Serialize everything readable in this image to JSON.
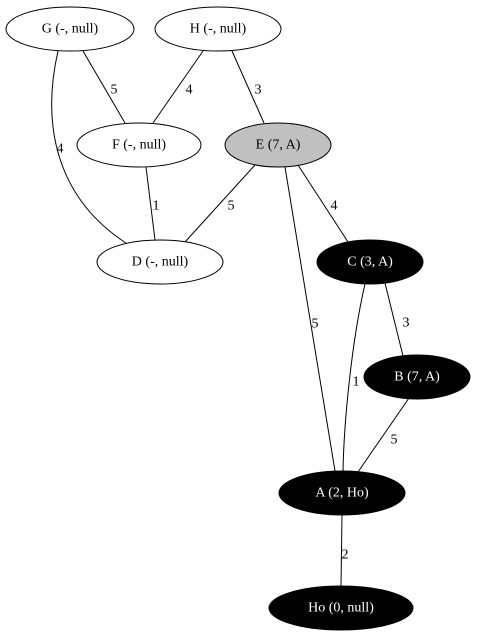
{
  "graph": {
    "nodes": [
      {
        "id": "G",
        "label": "G (-, null)",
        "state": "unvisited"
      },
      {
        "id": "H",
        "label": "H (-, null)",
        "state": "unvisited"
      },
      {
        "id": "F",
        "label": "F (-, null)",
        "state": "unvisited"
      },
      {
        "id": "E",
        "label": "E (7, A)",
        "state": "frontier"
      },
      {
        "id": "D",
        "label": "D (-, null)",
        "state": "unvisited"
      },
      {
        "id": "C",
        "label": "C (3, A)",
        "state": "visited"
      },
      {
        "id": "B",
        "label": "B (7, A)",
        "state": "visited"
      },
      {
        "id": "A",
        "label": "A (2, Ho)",
        "state": "visited"
      },
      {
        "id": "Ho",
        "label": "Ho (0, null)",
        "state": "visited"
      }
    ],
    "edges": [
      {
        "from": "G",
        "to": "F",
        "weight": "5"
      },
      {
        "from": "G",
        "to": "D",
        "weight": "4"
      },
      {
        "from": "H",
        "to": "F",
        "weight": "4"
      },
      {
        "from": "H",
        "to": "E",
        "weight": "3"
      },
      {
        "from": "F",
        "to": "D",
        "weight": "1"
      },
      {
        "from": "E",
        "to": "D",
        "weight": "5"
      },
      {
        "from": "E",
        "to": "C",
        "weight": "4"
      },
      {
        "from": "E",
        "to": "A",
        "weight": "5"
      },
      {
        "from": "C",
        "to": "B",
        "weight": "3"
      },
      {
        "from": "C",
        "to": "A",
        "weight": "1"
      },
      {
        "from": "B",
        "to": "A",
        "weight": "5"
      },
      {
        "from": "A",
        "to": "Ho",
        "weight": "2"
      }
    ],
    "colors": {
      "unvisited_fill": "#ffffff",
      "unvisited_text": "#000000",
      "frontier_fill": "#c0c0c0",
      "frontier_text": "#000000",
      "visited_fill": "#000000",
      "visited_text": "#ffffff"
    }
  }
}
